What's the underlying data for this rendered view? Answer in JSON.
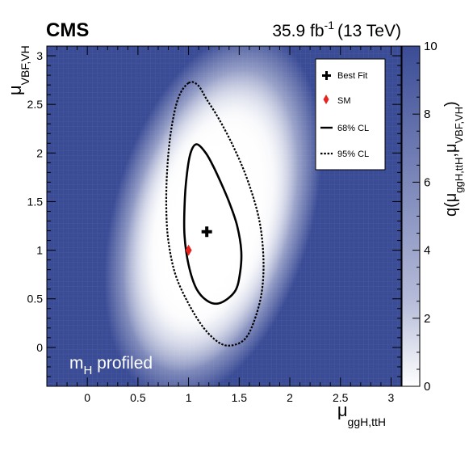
{
  "chart_data": {
    "type": "heatmap",
    "experiment": "CMS",
    "lumi_label": "35.9 fb",
    "lumi_exp": "-1",
    "energy_label": "(13 TeV)",
    "annotation": {
      "main": "m",
      "sub": "H",
      "rest": " profiled"
    },
    "xlabel": {
      "main": "μ",
      "sub": "ggH,ttH"
    },
    "ylabel": {
      "main": "μ",
      "sub": "VBF,VH"
    },
    "zlabel": {
      "prefix": "q(μ",
      "sub1": "ggH,ttH",
      "sep": ",μ",
      "sub2": "VBF,VH",
      "suffix": ")"
    },
    "xlim": [
      -0.4,
      3.1
    ],
    "ylim": [
      -0.4,
      3.1
    ],
    "zlim": [
      0,
      10
    ],
    "x_ticks": [
      0,
      0.5,
      1,
      1.5,
      2,
      2.5,
      3
    ],
    "y_ticks": [
      0,
      0.5,
      1,
      1.5,
      2,
      2.5,
      3
    ],
    "z_ticks": [
      0,
      2,
      4,
      6,
      8,
      10
    ],
    "best_fit": {
      "x": 1.18,
      "y": 1.19
    },
    "sm_point": {
      "x": 1.0,
      "y": 1.0
    },
    "contour_68": [
      [
        1.08,
        2.09
      ],
      [
        1.17,
        2.0
      ],
      [
        1.25,
        1.85
      ],
      [
        1.33,
        1.67
      ],
      [
        1.41,
        1.47
      ],
      [
        1.48,
        1.25
      ],
      [
        1.52,
        1.0
      ],
      [
        1.51,
        0.78
      ],
      [
        1.46,
        0.58
      ],
      [
        1.32,
        0.46
      ],
      [
        1.2,
        0.47
      ],
      [
        1.08,
        0.6
      ],
      [
        1.0,
        0.85
      ],
      [
        0.96,
        1.15
      ],
      [
        0.96,
        1.45
      ],
      [
        0.98,
        1.75
      ],
      [
        1.02,
        2.0
      ],
      [
        1.08,
        2.09
      ]
    ],
    "contour_95": [
      [
        1.0,
        2.72
      ],
      [
        1.09,
        2.7
      ],
      [
        1.18,
        2.55
      ],
      [
        1.3,
        2.35
      ],
      [
        1.45,
        2.05
      ],
      [
        1.59,
        1.7
      ],
      [
        1.7,
        1.3
      ],
      [
        1.74,
        0.9
      ],
      [
        1.72,
        0.55
      ],
      [
        1.64,
        0.25
      ],
      [
        1.55,
        0.08
      ],
      [
        1.42,
        0.02
      ],
      [
        1.3,
        0.05
      ],
      [
        1.15,
        0.2
      ],
      [
        1.0,
        0.45
      ],
      [
        0.87,
        0.75
      ],
      [
        0.8,
        1.1
      ],
      [
        0.78,
        1.45
      ],
      [
        0.79,
        1.85
      ],
      [
        0.83,
        2.25
      ],
      [
        0.9,
        2.57
      ],
      [
        1.0,
        2.72
      ]
    ],
    "legend": [
      {
        "symbol": "cross",
        "label": "Best Fit"
      },
      {
        "symbol": "diamond",
        "label": "SM"
      },
      {
        "symbol": "solid",
        "label": "68% CL"
      },
      {
        "symbol": "dotted",
        "label": "95% CL"
      }
    ],
    "legend_position": "top-right",
    "colors": {
      "high": "#3b4c96",
      "low": "#ffffff",
      "sm": "#e8221f",
      "contour": "#000000"
    }
  }
}
